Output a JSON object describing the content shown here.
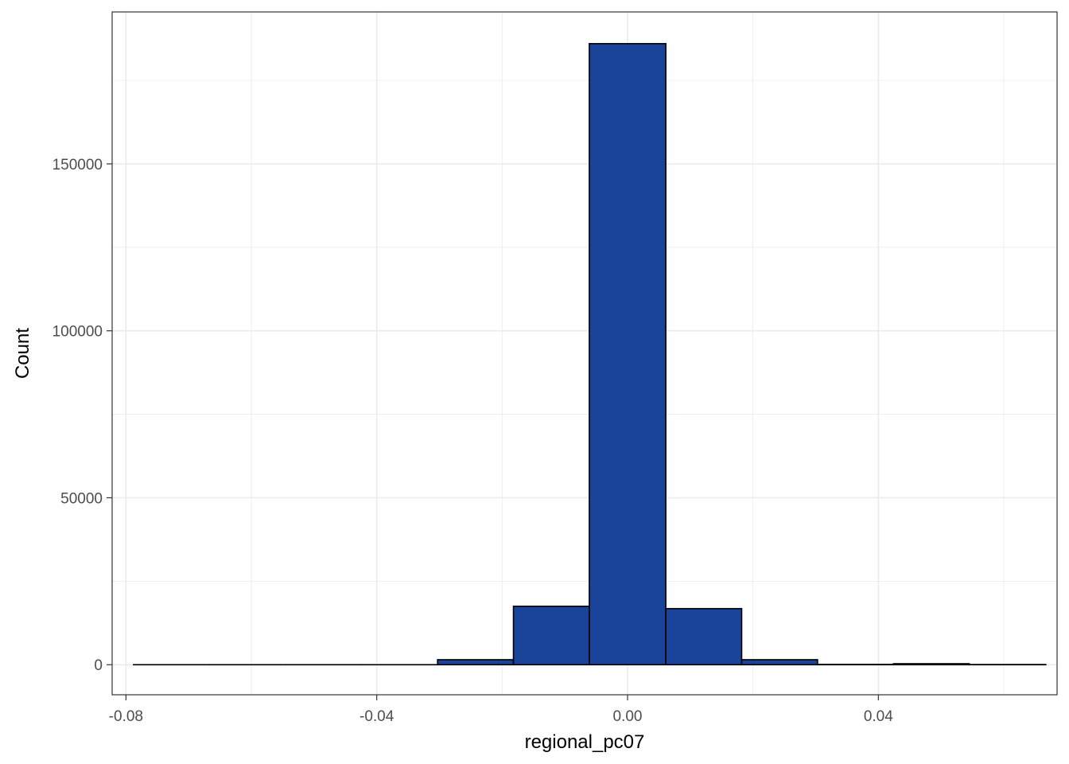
{
  "chart_data": {
    "type": "bar",
    "subtype": "histogram",
    "title": "",
    "xlabel": "regional_pc07",
    "ylabel": "Count",
    "xlim": [
      -0.0822,
      0.0685
    ],
    "ylim": [
      -9000,
      195500
    ],
    "x_ticks": [
      {
        "value": -0.08,
        "label": "-0.08"
      },
      {
        "value": -0.04,
        "label": "-0.04"
      },
      {
        "value": 0.0,
        "label": "0.00"
      },
      {
        "value": 0.04,
        "label": "0.04"
      }
    ],
    "y_ticks": [
      {
        "value": 0,
        "label": "0"
      },
      {
        "value": 50000,
        "label": "50000"
      },
      {
        "value": 100000,
        "label": "100000"
      },
      {
        "value": 150000,
        "label": "150000"
      }
    ],
    "x_minor_breaks": [
      -0.06,
      -0.02,
      0.02,
      0.06
    ],
    "y_minor_breaks": [
      25000,
      75000,
      125000,
      175000
    ],
    "bins": [
      {
        "x0": -0.0788,
        "x1": -0.0667,
        "count": 0
      },
      {
        "x0": -0.0667,
        "x1": -0.0545,
        "count": 0
      },
      {
        "x0": -0.0545,
        "x1": -0.0424,
        "count": 0
      },
      {
        "x0": -0.0424,
        "x1": -0.0303,
        "count": 0
      },
      {
        "x0": -0.0303,
        "x1": -0.0182,
        "count": 1500
      },
      {
        "x0": -0.0182,
        "x1": -0.0061,
        "count": 17500
      },
      {
        "x0": -0.0061,
        "x1": 0.0061,
        "count": 186000
      },
      {
        "x0": 0.0061,
        "x1": 0.0182,
        "count": 16800
      },
      {
        "x0": 0.0182,
        "x1": 0.0303,
        "count": 1500
      },
      {
        "x0": 0.0303,
        "x1": 0.0424,
        "count": 100
      },
      {
        "x0": 0.0424,
        "x1": 0.0545,
        "count": 300
      },
      {
        "x0": 0.0545,
        "x1": 0.0667,
        "count": 50
      }
    ],
    "fill_color": "#1a4499",
    "outline_color": "#000000",
    "grid": true,
    "grid_color": "#ebebeb",
    "panel_border_color": "#333333",
    "legend": "none"
  }
}
